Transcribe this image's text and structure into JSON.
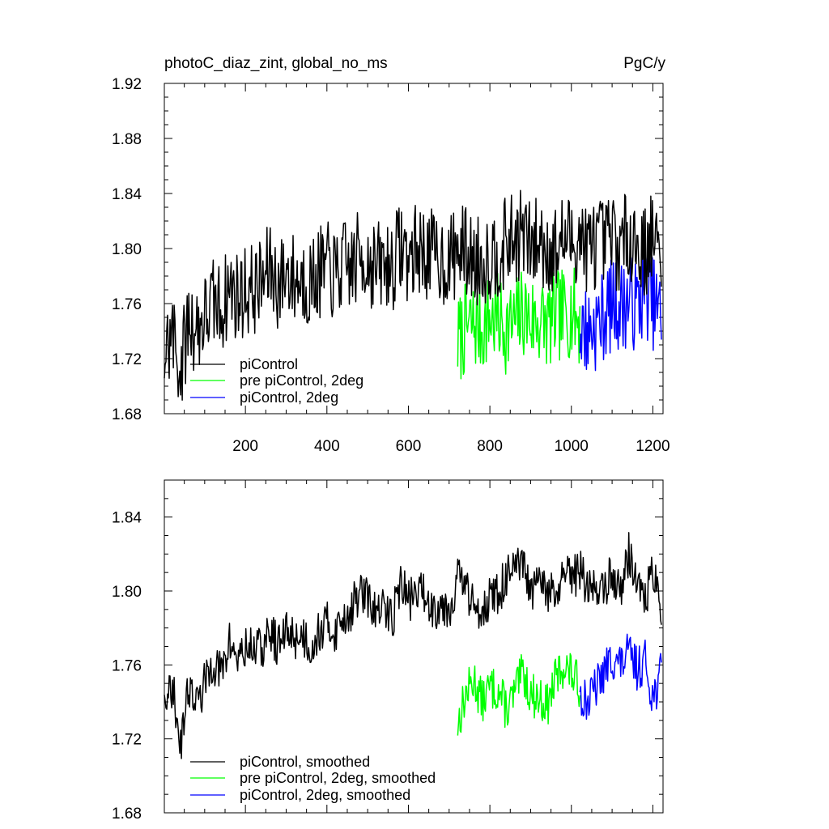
{
  "chart_data": [
    {
      "type": "line",
      "title": "photoC_diaz_zint, global_no_ms",
      "units": "PgC/y",
      "xlabel": "",
      "ylabel": "",
      "xlim": [
        1,
        1225
      ],
      "ylim": [
        1.68,
        1.92
      ],
      "x_ticks": [
        200,
        400,
        600,
        800,
        1000,
        1200
      ],
      "x_tick_labels": [
        "200",
        "400",
        "600",
        "800",
        "1000",
        "1200"
      ],
      "y_ticks": [
        1.68,
        1.72,
        1.76,
        1.8,
        1.84,
        1.88,
        1.92
      ],
      "y_tick_labels": [
        "1.68",
        "1.72",
        "1.76",
        "1.80",
        "1.84",
        "1.88",
        "1.92"
      ],
      "legend_position": "bottom-left",
      "series": [
        {
          "name": "piControl",
          "color": "#000000",
          "x_start": 1,
          "x_step": 20,
          "values": [
            1.722,
            1.738,
            1.712,
            1.748,
            1.742,
            1.75,
            1.76,
            1.756,
            1.772,
            1.765,
            1.77,
            1.77,
            1.775,
            1.786,
            1.773,
            1.784,
            1.777,
            1.778,
            1.775,
            1.782,
            1.786,
            1.779,
            1.788,
            1.786,
            1.795,
            1.792,
            1.786,
            1.788,
            1.788,
            1.803,
            1.792,
            1.8,
            1.797,
            1.795,
            1.792,
            1.79,
            1.8,
            1.798,
            1.791,
            1.791,
            1.795,
            1.797,
            1.804,
            1.806,
            1.812,
            1.8,
            1.806,
            1.8,
            1.798,
            1.808,
            1.805,
            1.81,
            1.799,
            1.805,
            1.802,
            1.809,
            1.798,
            1.813,
            1.803,
            1.798,
            1.81,
            1.788
          ]
        },
        {
          "name": "pre piControl, 2deg",
          "color": "#00ff00",
          "x_start": 721,
          "x_step": 20,
          "values": [
            1.732,
            1.742,
            1.745,
            1.742,
            1.75,
            1.748,
            1.742,
            1.745,
            1.754,
            1.748,
            1.748,
            1.745,
            1.75,
            1.752,
            1.755,
            1.746
          ]
        },
        {
          "name": "piControl, 2deg",
          "color": "#0000ff",
          "x_start": 1021,
          "x_step": 20,
          "values": [
            1.742,
            1.74,
            1.745,
            1.752,
            1.76,
            1.758,
            1.762,
            1.758,
            1.77,
            1.76,
            1.75
          ]
        }
      ]
    },
    {
      "type": "line",
      "title": "",
      "xlabel": "",
      "ylabel": "",
      "xlim": [
        1,
        1225
      ],
      "ylim": [
        1.68,
        1.86
      ],
      "x_ticks": [
        200,
        400,
        600,
        800,
        1000,
        1200
      ],
      "y_ticks": [
        1.68,
        1.72,
        1.76,
        1.8,
        1.84
      ],
      "y_tick_labels": [
        "1.68",
        "1.72",
        "1.76",
        "1.80",
        "1.84"
      ],
      "legend_position": "bottom-left",
      "series": [
        {
          "name": "piControl, smoothed",
          "color": "#000000",
          "x_start": 1,
          "x_step": 20,
          "values": [
            1.742,
            1.748,
            1.718,
            1.75,
            1.738,
            1.75,
            1.762,
            1.755,
            1.772,
            1.764,
            1.768,
            1.77,
            1.768,
            1.778,
            1.77,
            1.778,
            1.775,
            1.776,
            1.77,
            1.778,
            1.782,
            1.778,
            1.786,
            1.79,
            1.8,
            1.795,
            1.788,
            1.79,
            1.786,
            1.805,
            1.795,
            1.8,
            1.798,
            1.79,
            1.794,
            1.79,
            1.808,
            1.802,
            1.79,
            1.792,
            1.796,
            1.798,
            1.808,
            1.81,
            1.814,
            1.798,
            1.804,
            1.8,
            1.796,
            1.808,
            1.806,
            1.812,
            1.8,
            1.804,
            1.8,
            1.81,
            1.8,
            1.82,
            1.806,
            1.794,
            1.812,
            1.78
          ]
        },
        {
          "name": "pre piControl, 2deg, smoothed",
          "color": "#00ff00",
          "x_start": 721,
          "x_step": 20,
          "values": [
            1.728,
            1.744,
            1.752,
            1.74,
            1.748,
            1.746,
            1.736,
            1.744,
            1.756,
            1.744,
            1.742,
            1.738,
            1.752,
            1.76,
            1.755,
            1.748
          ]
        },
        {
          "name": "piControl, 2deg, smoothed",
          "color": "#0000ff",
          "x_start": 1021,
          "x_step": 20,
          "values": [
            1.745,
            1.74,
            1.748,
            1.756,
            1.764,
            1.76,
            1.766,
            1.758,
            1.762,
            1.742,
            1.756
          ]
        }
      ]
    }
  ]
}
